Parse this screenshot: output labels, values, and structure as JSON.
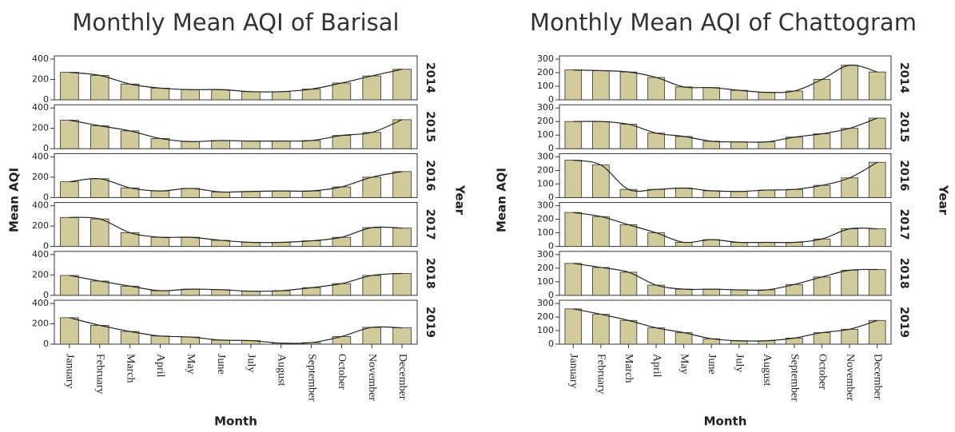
{
  "chart_data": [
    {
      "type": "bar",
      "title": "Monthly Mean AQI of Barisal",
      "x_label": "Month",
      "y_label": "Mean AQI",
      "facet_label": "Year",
      "categories": [
        "January",
        "February",
        "March",
        "April",
        "May",
        "June",
        "July",
        "August",
        "September",
        "October",
        "November",
        "December"
      ],
      "ylim": [
        0,
        400
      ],
      "yticks": [
        0,
        200,
        400
      ],
      "color": "#d1ca9a",
      "line_color": "#222222",
      "facets": [
        {
          "name": "2014",
          "values": [
            270,
            240,
            155,
            115,
            100,
            100,
            80,
            80,
            105,
            165,
            235,
            300
          ]
        },
        {
          "name": "2015",
          "values": [
            280,
            225,
            175,
            100,
            70,
            80,
            75,
            75,
            80,
            130,
            160,
            285
          ]
        },
        {
          "name": "2016",
          "values": [
            155,
            185,
            95,
            65,
            90,
            55,
            60,
            65,
            65,
            105,
            200,
            255
          ]
        },
        {
          "name": "2017",
          "values": [
            285,
            270,
            135,
            90,
            90,
            60,
            40,
            40,
            55,
            90,
            185,
            180
          ]
        },
        {
          "name": "2018",
          "values": [
            195,
            140,
            90,
            45,
            60,
            55,
            40,
            45,
            75,
            115,
            195,
            215
          ]
        },
        {
          "name": "2019",
          "values": [
            260,
            185,
            125,
            80,
            70,
            40,
            35,
            10,
            15,
            75,
            165,
            160
          ]
        }
      ]
    },
    {
      "type": "bar",
      "title": "Monthly Mean AQI of Chattogram",
      "x_label": "Month",
      "y_label": "Mean AQI",
      "facet_label": "Year",
      "categories": [
        "January",
        "February",
        "March",
        "April",
        "May",
        "June",
        "July",
        "August",
        "September",
        "October",
        "November",
        "December"
      ],
      "ylim": [
        0,
        300
      ],
      "yticks": [
        0,
        100,
        200,
        300
      ],
      "color": "#d1ca9a",
      "line_color": "#222222",
      "facets": [
        {
          "name": "2014",
          "values": [
            220,
            215,
            205,
            165,
            95,
            90,
            70,
            55,
            65,
            150,
            255,
            205
          ]
        },
        {
          "name": "2015",
          "values": [
            200,
            200,
            180,
            115,
            90,
            55,
            50,
            50,
            85,
            110,
            150,
            225
          ]
        },
        {
          "name": "2016",
          "values": [
            275,
            240,
            60,
            60,
            70,
            50,
            45,
            55,
            60,
            90,
            145,
            260
          ]
        },
        {
          "name": "2017",
          "values": [
            250,
            220,
            160,
            100,
            30,
            50,
            30,
            30,
            30,
            55,
            130,
            130
          ]
        },
        {
          "name": "2018",
          "values": [
            235,
            205,
            170,
            75,
            45,
            45,
            40,
            40,
            80,
            135,
            185,
            190
          ]
        },
        {
          "name": "2019",
          "values": [
            260,
            220,
            175,
            120,
            85,
            40,
            25,
            25,
            45,
            85,
            110,
            175
          ]
        }
      ]
    }
  ]
}
